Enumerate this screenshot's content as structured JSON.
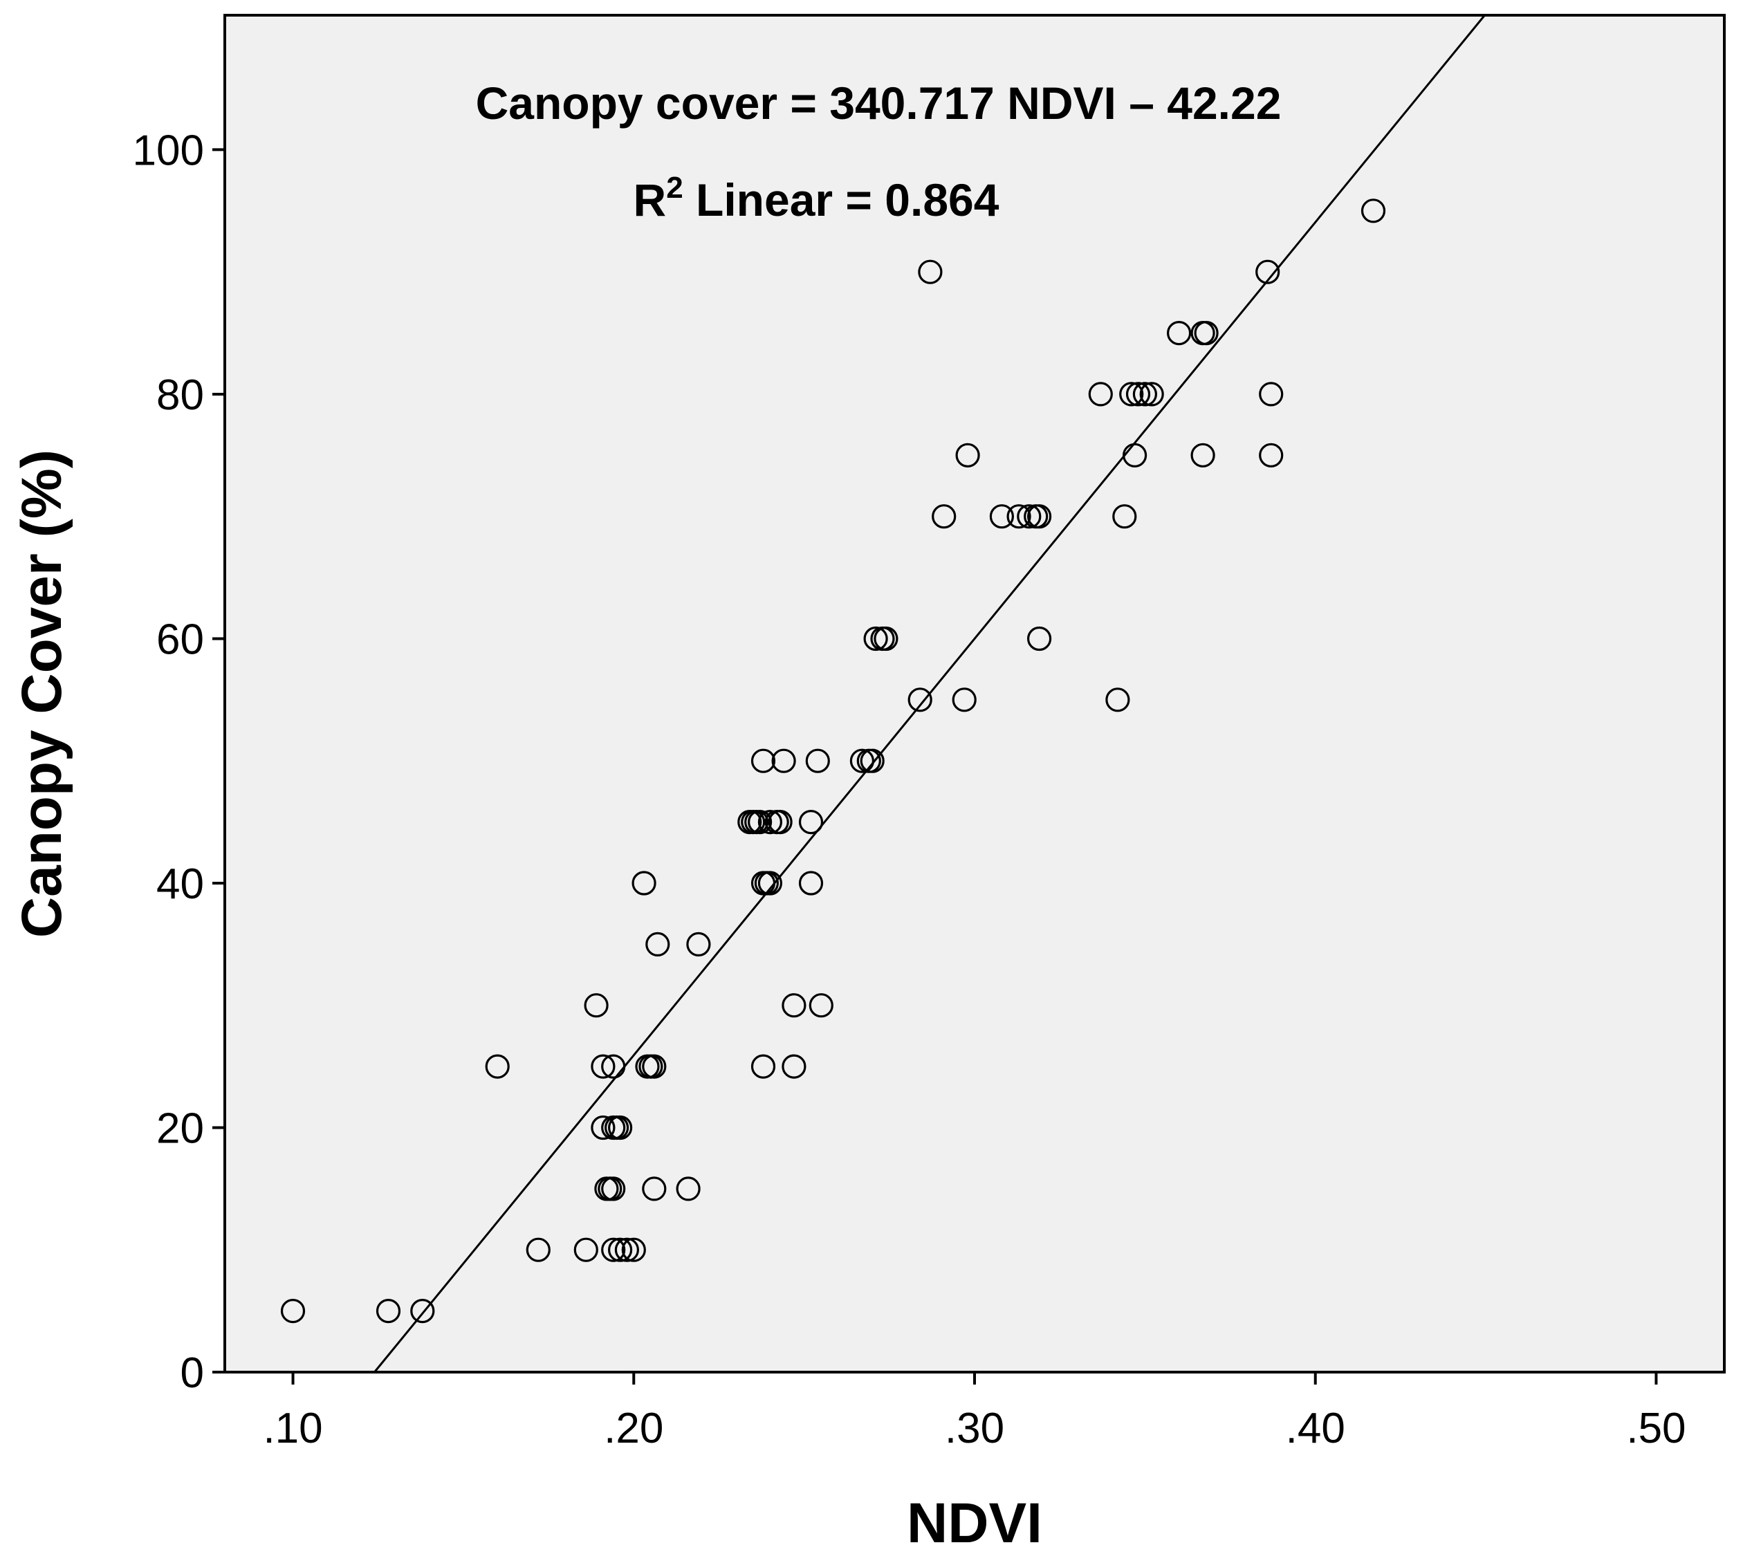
{
  "chart_data": {
    "type": "scatter",
    "title": "",
    "xlabel": "NDVI",
    "ylabel": "Canopy Cover (%)",
    "xlim": [
      0.08,
      0.52
    ],
    "ylim": [
      0,
      111
    ],
    "x_ticks": [
      {
        "value": 0.1,
        "label": ".10"
      },
      {
        "value": 0.2,
        "label": ".20"
      },
      {
        "value": 0.3,
        "label": ".30"
      },
      {
        "value": 0.4,
        "label": ".40"
      },
      {
        "value": 0.5,
        "label": ".50"
      }
    ],
    "y_ticks": [
      {
        "value": 0,
        "label": "0"
      },
      {
        "value": 20,
        "label": "20"
      },
      {
        "value": 40,
        "label": "40"
      },
      {
        "value": 60,
        "label": "60"
      },
      {
        "value": 80,
        "label": "80"
      },
      {
        "value": 100,
        "label": "100"
      }
    ],
    "grid": false,
    "background_color": "#f0f0f0",
    "series": [
      {
        "marker": "open-circle",
        "color": "#000000",
        "points": [
          [
            0.1,
            5
          ],
          [
            0.128,
            5
          ],
          [
            0.138,
            5
          ],
          [
            0.172,
            10
          ],
          [
            0.186,
            10
          ],
          [
            0.194,
            10
          ],
          [
            0.196,
            10
          ],
          [
            0.198,
            10
          ],
          [
            0.2,
            10
          ],
          [
            0.192,
            15
          ],
          [
            0.193,
            15
          ],
          [
            0.194,
            15
          ],
          [
            0.206,
            15
          ],
          [
            0.216,
            15
          ],
          [
            0.191,
            20
          ],
          [
            0.194,
            20
          ],
          [
            0.195,
            20
          ],
          [
            0.196,
            20
          ],
          [
            0.16,
            25
          ],
          [
            0.191,
            25
          ],
          [
            0.194,
            25
          ],
          [
            0.204,
            25
          ],
          [
            0.205,
            25
          ],
          [
            0.206,
            25
          ],
          [
            0.238,
            25
          ],
          [
            0.247,
            25
          ],
          [
            0.189,
            30
          ],
          [
            0.247,
            30
          ],
          [
            0.255,
            30
          ],
          [
            0.207,
            35
          ],
          [
            0.219,
            35
          ],
          [
            0.203,
            40
          ],
          [
            0.238,
            40
          ],
          [
            0.239,
            40
          ],
          [
            0.24,
            40
          ],
          [
            0.252,
            40
          ],
          [
            0.234,
            45
          ],
          [
            0.235,
            45
          ],
          [
            0.236,
            45
          ],
          [
            0.237,
            45
          ],
          [
            0.24,
            45
          ],
          [
            0.242,
            45
          ],
          [
            0.243,
            45
          ],
          [
            0.252,
            45
          ],
          [
            0.238,
            50
          ],
          [
            0.244,
            50
          ],
          [
            0.254,
            50
          ],
          [
            0.267,
            50
          ],
          [
            0.269,
            50
          ],
          [
            0.27,
            50
          ],
          [
            0.284,
            55
          ],
          [
            0.297,
            55
          ],
          [
            0.342,
            55
          ],
          [
            0.271,
            60
          ],
          [
            0.273,
            60
          ],
          [
            0.274,
            60
          ],
          [
            0.319,
            60
          ],
          [
            0.291,
            70
          ],
          [
            0.308,
            70
          ],
          [
            0.313,
            70
          ],
          [
            0.316,
            70
          ],
          [
            0.318,
            70
          ],
          [
            0.319,
            70
          ],
          [
            0.344,
            70
          ],
          [
            0.298,
            75
          ],
          [
            0.347,
            75
          ],
          [
            0.367,
            75
          ],
          [
            0.387,
            75
          ],
          [
            0.337,
            80
          ],
          [
            0.346,
            80
          ],
          [
            0.348,
            80
          ],
          [
            0.35,
            80
          ],
          [
            0.352,
            80
          ],
          [
            0.387,
            80
          ],
          [
            0.36,
            85
          ],
          [
            0.367,
            85
          ],
          [
            0.368,
            85
          ],
          [
            0.287,
            90
          ],
          [
            0.386,
            90
          ],
          [
            0.417,
            95
          ]
        ]
      }
    ],
    "fit_line": {
      "slope": 340.717,
      "intercept": -42.22,
      "r2": 0.864
    },
    "annotations": {
      "equation": "Canopy cover = 340.717 NDVI – 42.22",
      "r2_prefix": "R",
      "r2_superscript": "2",
      "r2_suffix": " Linear = 0.864"
    }
  }
}
